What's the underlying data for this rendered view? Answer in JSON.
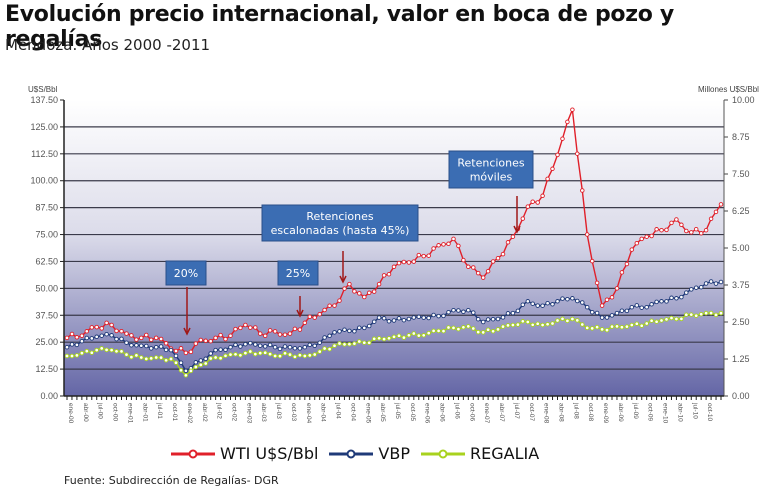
{
  "header": {
    "title": "Evolución precio internacional, valor en boca de pozo y regalías",
    "subtitle": "Mendoza.  Años 2000 -2011"
  },
  "axes": {
    "left_title": "U$S/Bbl",
    "right_title": "Millones U$S/Bbl",
    "left_ticks": [
      "0.00",
      "12.50",
      "25.00",
      "37.50",
      "50.00",
      "62.50",
      "75.00",
      "87.50",
      "100.00",
      "112.50",
      "125.00",
      "137.50"
    ],
    "right_ticks": [
      "0.00",
      "1.25",
      "2.50",
      "3.75",
      "5.00",
      "6.25",
      "7.50",
      "8.75",
      "10.00"
    ]
  },
  "annotations": [
    {
      "label": "20%",
      "lines": [
        "20%"
      ]
    },
    {
      "label": "25%",
      "lines": [
        "25%"
      ]
    },
    {
      "label": "Retenciones escalonadas (hasta 45%)",
      "lines": [
        "Retenciones",
        "escalonadas  (hasta 45%)"
      ]
    },
    {
      "label": "Retenciones móviles",
      "lines": [
        "Retenciones",
        "móviles"
      ]
    }
  ],
  "legend": [
    {
      "label": "WTI U$S/Bbl",
      "color": "#e0202a"
    },
    {
      "label": "VBP",
      "color": "#1f3a78"
    },
    {
      "label": "REGALIA",
      "color": "#a8d21e"
    }
  ],
  "footer": {
    "source": "Fuente: Subdirección de Regalías- DGR"
  },
  "colors": {
    "wti": "#e0202a",
    "vbp": "#1f3a78",
    "regalia": "#a8d21e",
    "annotation_box": "#3b6db3",
    "arrow": "#a01818",
    "plot_bg_top": "#ffffff",
    "plot_bg_bottom": "#6466a6"
  },
  "chart_data": {
    "type": "line",
    "title": "Evolución precio internacional, valor en boca de pozo y regalías",
    "subtitle": "Mendoza. Años 2000 -2011",
    "xlabel": "",
    "ylabel": "U$S/Bbl",
    "y2label": "Millones U$S/Bbl",
    "ylim": [
      0,
      137.5
    ],
    "y2lim": [
      0,
      10
    ],
    "grid": true,
    "legend_position": "bottom",
    "categories": [
      "ene-00",
      "abr-00",
      "jul-00",
      "oct-00",
      "ene-01",
      "abr-01",
      "jul-01",
      "oct-01",
      "ene-02",
      "abr-02",
      "jul-02",
      "oct-02",
      "ene-03",
      "abr-03",
      "jul-03",
      "oct-03",
      "ene-04",
      "abr-04",
      "jul-04",
      "oct-04",
      "ene-05",
      "abr-05",
      "jul-05",
      "oct-05",
      "ene-06",
      "abr-06",
      "jul-06",
      "oct-06",
      "ene-07",
      "abr-07",
      "jul-07",
      "oct-07",
      "ene-08",
      "abr-08",
      "jul-08",
      "oct-08",
      "ene-09",
      "abr-09",
      "jul-09",
      "oct-09",
      "ene-10",
      "abr-10",
      "jul-10",
      "oct-10",
      "ene-11"
    ],
    "series": [
      {
        "name": "WTI U$S/Bbl",
        "axis": "left",
        "values": [
          27,
          28,
          32,
          33,
          29,
          27,
          27,
          22,
          20,
          26,
          27,
          28,
          33,
          29,
          30,
          29,
          34,
          38,
          42,
          52,
          46,
          52,
          60,
          62,
          65,
          70,
          73,
          60,
          55,
          64,
          74,
          88,
          93,
          112,
          133,
          75,
          42,
          50,
          68,
          74,
          77,
          82,
          76,
          77,
          89
        ]
      },
      {
        "name": "VBP",
        "axis": "right",
        "values": [
          1.65,
          1.85,
          2.0,
          2.05,
          1.8,
          1.7,
          1.65,
          1.55,
          0.85,
          1.2,
          1.55,
          1.65,
          1.75,
          1.7,
          1.65,
          1.65,
          1.65,
          1.8,
          2.15,
          2.2,
          2.3,
          2.65,
          2.55,
          2.6,
          2.65,
          2.7,
          2.9,
          2.9,
          2.5,
          2.6,
          2.8,
          3.2,
          3.05,
          3.2,
          3.3,
          3.0,
          2.65,
          2.8,
          3.0,
          3.0,
          3.2,
          3.3,
          3.6,
          3.8,
          3.85
        ]
      },
      {
        "name": "REGALIA",
        "axis": "right",
        "values": [
          1.35,
          1.45,
          1.55,
          1.55,
          1.4,
          1.3,
          1.3,
          1.25,
          0.7,
          1.05,
          1.3,
          1.4,
          1.45,
          1.45,
          1.35,
          1.4,
          1.35,
          1.5,
          1.7,
          1.75,
          1.8,
          1.95,
          2.0,
          2.05,
          2.05,
          2.2,
          2.3,
          2.35,
          2.15,
          2.25,
          2.4,
          2.5,
          2.4,
          2.55,
          2.6,
          2.3,
          2.25,
          2.35,
          2.4,
          2.45,
          2.55,
          2.6,
          2.75,
          2.8,
          2.8
        ]
      }
    ],
    "annotations": [
      {
        "text": "20%",
        "x": "mar-02"
      },
      {
        "text": "25%",
        "x": "jun-03"
      },
      {
        "text": "Retenciones escalonadas (hasta 45%)",
        "x": "jun-04"
      },
      {
        "text": "Retenciones móviles",
        "x": "nov-07"
      }
    ]
  }
}
